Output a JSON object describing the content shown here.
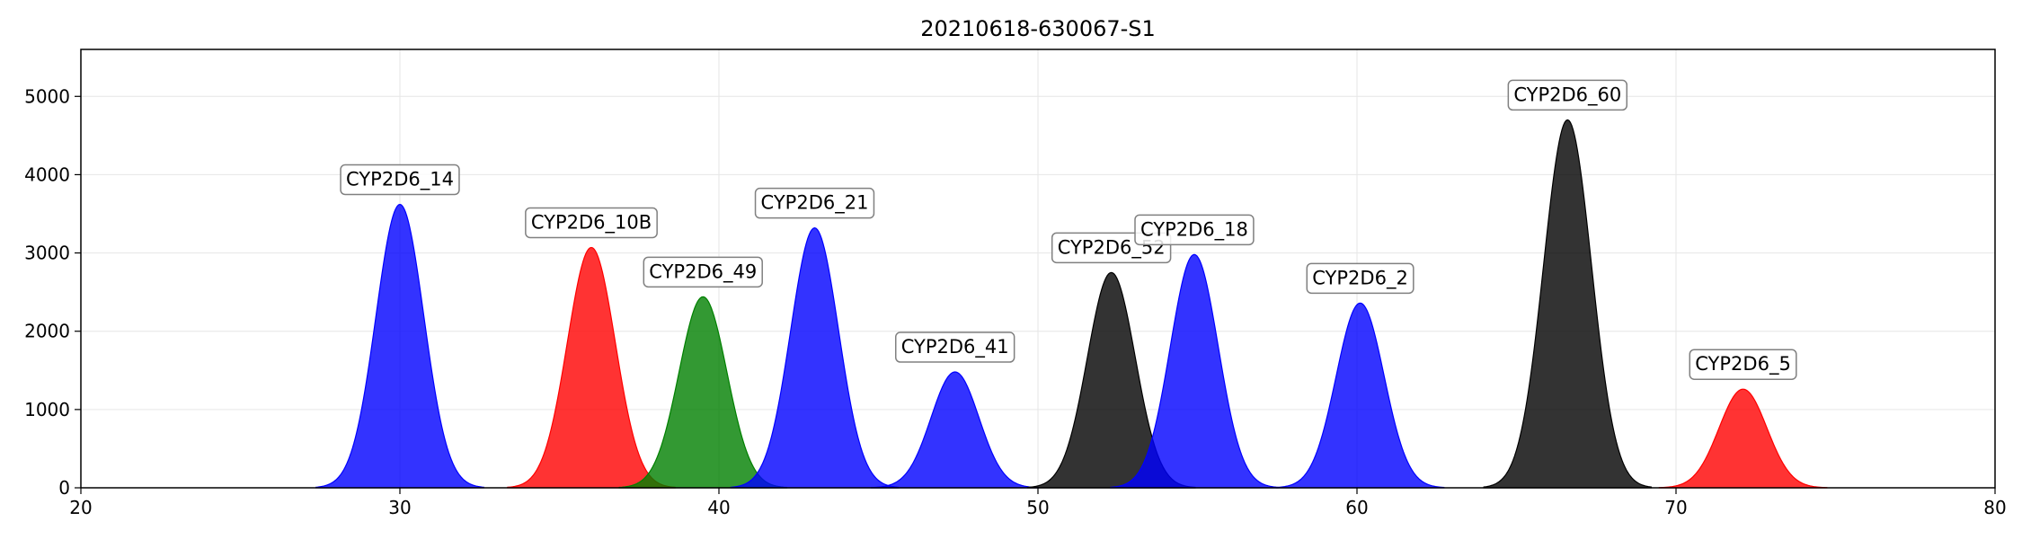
{
  "chart_data": {
    "type": "area",
    "title": "20210618-630067-S1",
    "xlabel": "",
    "ylabel": "",
    "xlim": [
      20,
      80
    ],
    "ylim": [
      0,
      5600
    ],
    "xticks": [
      20,
      30,
      40,
      50,
      60,
      70,
      80
    ],
    "yticks": [
      0,
      1000,
      2000,
      3000,
      4000,
      5000
    ],
    "grid": true,
    "colors": {
      "blue": "#0000ff",
      "red": "#ff0000",
      "green": "#008000",
      "black": "#000000"
    },
    "series": [
      {
        "name": "CYP2D6_14",
        "center": 30.0,
        "height": 3620,
        "sigma": 0.75,
        "color": "blue"
      },
      {
        "name": "CYP2D6_10B",
        "center": 36.0,
        "height": 3070,
        "sigma": 0.75,
        "color": "red"
      },
      {
        "name": "CYP2D6_49",
        "center": 39.5,
        "height": 2440,
        "sigma": 0.75,
        "color": "green"
      },
      {
        "name": "CYP2D6_21",
        "center": 43.0,
        "height": 3320,
        "sigma": 0.75,
        "color": "blue"
      },
      {
        "name": "CYP2D6_41",
        "center": 47.4,
        "height": 1480,
        "sigma": 0.75,
        "color": "blue"
      },
      {
        "name": "CYP2D6_52",
        "center": 52.3,
        "height": 2750,
        "sigma": 0.75,
        "color": "black"
      },
      {
        "name": "CYP2D6_18",
        "center": 54.9,
        "height": 2980,
        "sigma": 0.75,
        "color": "blue"
      },
      {
        "name": "CYP2D6_2",
        "center": 60.1,
        "height": 2360,
        "sigma": 0.75,
        "color": "blue"
      },
      {
        "name": "CYP2D6_60",
        "center": 66.6,
        "height": 4700,
        "sigma": 0.75,
        "color": "black"
      },
      {
        "name": "CYP2D6_5",
        "center": 72.1,
        "height": 1260,
        "sigma": 0.75,
        "color": "red"
      }
    ]
  }
}
